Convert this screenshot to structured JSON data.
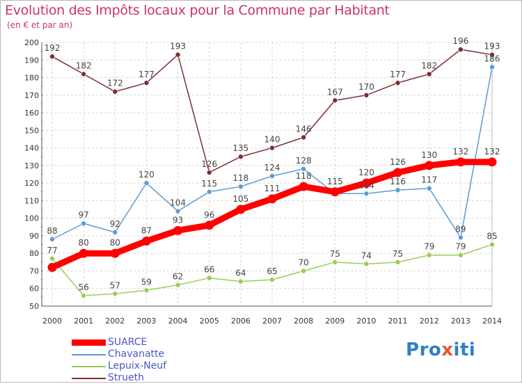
{
  "title": "Evolution des Impôts locaux pour la Commune par Habitant",
  "subtitle": "(en € et par an)",
  "brand": "Proxiti",
  "chart_data": {
    "type": "line",
    "title": "Evolution des Impôts locaux pour la Commune par Habitant",
    "ylabel": "(en € et par an)",
    "xlabel": "",
    "ylim": [
      50,
      200
    ],
    "ytick_step": 10,
    "grid": "horizontal dashed",
    "legend_position": "bottom-left",
    "x": [
      "2000",
      "2001",
      "2002",
      "2003",
      "2004",
      "2005",
      "2006",
      "2007",
      "2008",
      "2009",
      "2010",
      "2011",
      "2012",
      "2013",
      "2014"
    ],
    "series": [
      {
        "name": "SUARCE",
        "color": "#ff0000",
        "emphasis": true,
        "values": [
          72,
          80,
          80,
          87,
          93,
          96,
          105,
          111,
          118,
          115,
          120,
          126,
          130,
          132,
          132
        ],
        "labels": [
          "",
          "80",
          "80",
          "87",
          "93",
          "96",
          "105",
          "111",
          "118",
          "115",
          "120",
          "126",
          "130",
          "132",
          "132"
        ]
      },
      {
        "name": "Chavanatte",
        "color": "#5b9bd5",
        "values": [
          88,
          97,
          92,
          120,
          104,
          115,
          118,
          124,
          128,
          114,
          114,
          116,
          117,
          89,
          186
        ],
        "labels": [
          "88",
          "97",
          "92",
          "120",
          "104",
          "115",
          "118",
          "124",
          "128",
          "",
          "114",
          "116",
          "117",
          "89",
          "186"
        ]
      },
      {
        "name": "Lepuix-Neuf",
        "color": "#99cc55",
        "values": [
          77,
          56,
          57,
          59,
          62,
          66,
          64,
          65,
          70,
          75,
          74,
          75,
          79,
          79,
          85
        ],
        "labels": [
          "77",
          "56",
          "57",
          "59",
          "62",
          "66",
          "64",
          "65",
          "70",
          "75",
          "74",
          "75",
          "79",
          "79",
          "85"
        ]
      },
      {
        "name": "Strueth",
        "color": "#7b2f2f",
        "values": [
          192,
          182,
          172,
          177,
          193,
          126,
          135,
          140,
          146,
          167,
          170,
          177,
          182,
          196,
          193
        ],
        "labels": [
          "192",
          "182",
          "172",
          "177",
          "193",
          "126",
          "135",
          "140",
          "146",
          "167",
          "170",
          "177",
          "182",
          "196",
          "193"
        ]
      }
    ]
  }
}
